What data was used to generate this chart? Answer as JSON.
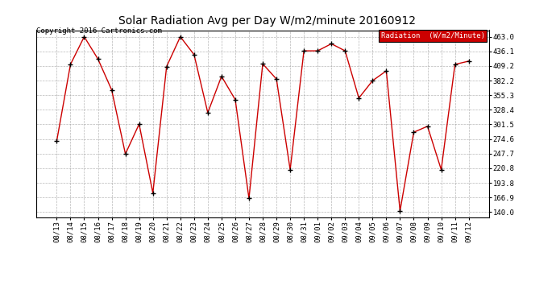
{
  "title": "Solar Radiation Avg per Day W/m2/minute 20160912",
  "copyright": "Copyright 2016 Cartronics.com",
  "legend_label": "Radiation  (W/m2/Minute)",
  "legend_bg": "#cc0000",
  "legend_text_color": "#ffffff",
  "line_color": "#cc0000",
  "marker_color": "#000000",
  "bg_color": "#ffffff",
  "grid_color": "#999999",
  "dates": [
    "08/13",
    "08/14",
    "08/15",
    "08/16",
    "08/17",
    "08/18",
    "08/19",
    "08/20",
    "08/21",
    "08/22",
    "08/23",
    "08/24",
    "08/25",
    "08/26",
    "08/27",
    "08/28",
    "08/29",
    "08/30",
    "08/31",
    "09/01",
    "09/02",
    "09/03",
    "09/04",
    "09/05",
    "09/06",
    "09/07",
    "09/08",
    "09/09",
    "09/10",
    "09/11",
    "09/12"
  ],
  "values": [
    271,
    412,
    463,
    422,
    365,
    247,
    302,
    175,
    408,
    463,
    430,
    323,
    390,
    347,
    165,
    413,
    385,
    218,
    437,
    437,
    450,
    437,
    350,
    382,
    400,
    142,
    287,
    298,
    218,
    412,
    418
  ],
  "yticks": [
    140.0,
    166.9,
    193.8,
    220.8,
    247.7,
    274.6,
    301.5,
    328.4,
    355.3,
    382.2,
    409.2,
    436.1,
    463.0
  ],
  "ylim": [
    130,
    475
  ],
  "title_fontsize": 10,
  "tick_fontsize": 6.5,
  "copyright_fontsize": 6.5,
  "legend_fontsize": 6.5
}
